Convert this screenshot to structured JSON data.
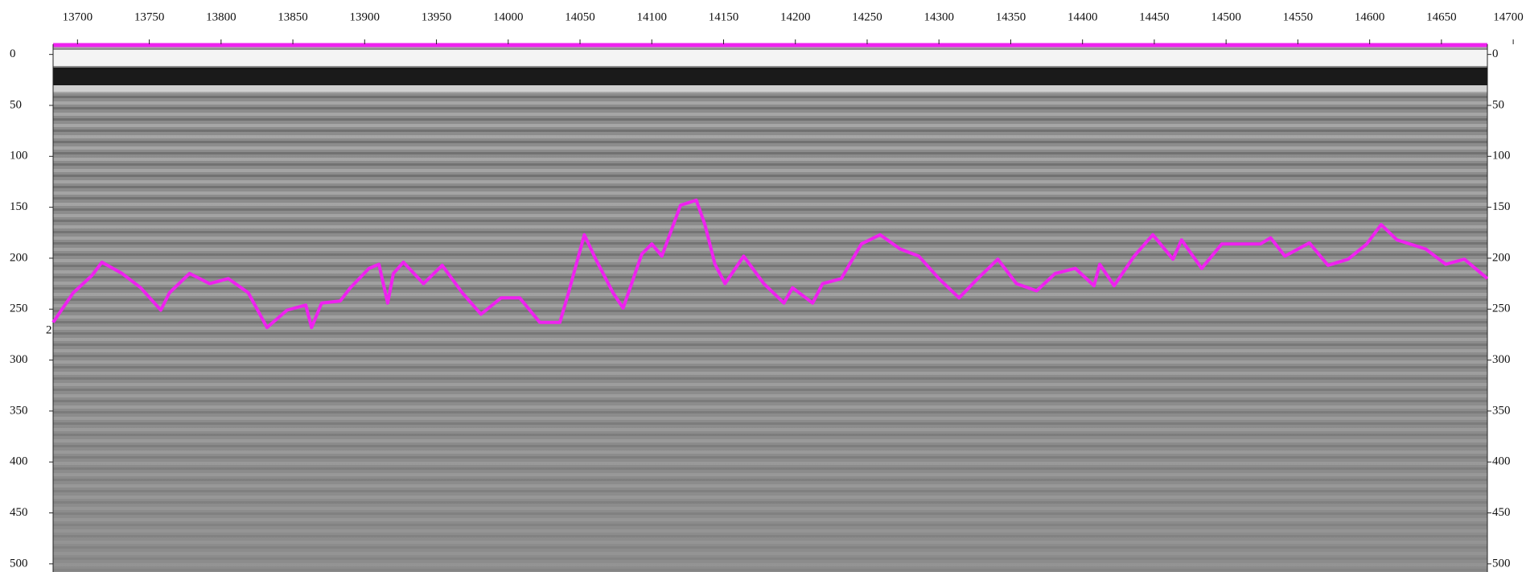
{
  "chart_data": {
    "type": "line",
    "annotation": "2",
    "xlim": [
      13683,
      14682
    ],
    "ylim": [
      -10,
      508
    ],
    "xticks": [
      13700,
      13750,
      13800,
      13850,
      13900,
      13950,
      14000,
      14050,
      14100,
      14150,
      14200,
      14250,
      14300,
      14350,
      14400,
      14450,
      14500,
      14550,
      14600,
      14650,
      14700
    ],
    "yticks": [
      0,
      50,
      100,
      150,
      200,
      250,
      300,
      350,
      400,
      450,
      500
    ],
    "series": [
      {
        "color": "#ee22ee",
        "x": [
          13683,
          13697,
          13710,
          13717,
          13731,
          13744,
          13758,
          13764,
          13778,
          13792,
          13805,
          13819,
          13832,
          13846,
          13859,
          13863,
          13870,
          13883,
          13890,
          13903,
          13910,
          13916,
          13920,
          13927,
          13941,
          13954,
          13968,
          13981,
          13995,
          14008,
          14022,
          14036,
          14042,
          14053,
          14061,
          14073,
          14080,
          14093,
          14100,
          14107,
          14120,
          14131,
          14137,
          14144,
          14151,
          14164,
          14178,
          14192,
          14198,
          14212,
          14219,
          14232,
          14246,
          14259,
          14273,
          14286,
          14300,
          14314,
          14327,
          14341,
          14354,
          14368,
          14381,
          14395,
          14408,
          14412,
          14422,
          14436,
          14449,
          14463,
          14469,
          14483,
          14497,
          14510,
          14524,
          14531,
          14541,
          14558,
          14571,
          14585,
          14598,
          14608,
          14619,
          14639,
          14653,
          14666,
          14682
        ],
        "values": [
          263,
          234,
          217,
          204,
          215,
          229,
          251,
          234,
          215,
          225,
          220,
          234,
          268,
          251,
          246,
          268,
          244,
          242,
          229,
          210,
          206,
          244,
          215,
          204,
          225,
          207,
          234,
          255,
          239,
          239,
          263,
          263,
          234,
          177,
          201,
          234,
          249,
          196,
          186,
          198,
          148,
          143,
          167,
          206,
          225,
          198,
          225,
          244,
          229,
          244,
          225,
          220,
          186,
          177,
          191,
          198,
          220,
          239,
          220,
          201,
          225,
          232,
          215,
          210,
          227,
          206,
          227,
          198,
          177,
          201,
          182,
          210,
          186,
          186,
          186,
          180,
          198,
          185,
          207,
          201,
          186,
          167,
          182,
          191,
          206,
          201,
          220
        ]
      }
    ]
  }
}
